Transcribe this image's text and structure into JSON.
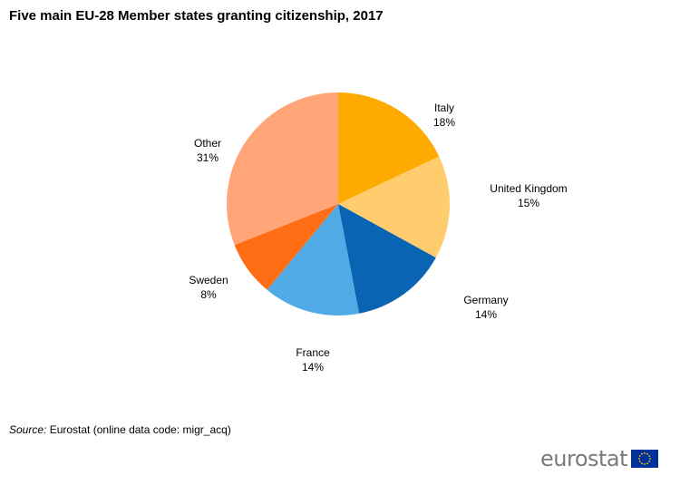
{
  "chart_data": {
    "type": "pie",
    "title": "Five main EU-28 Member states granting citizenship, 2017",
    "slices": [
      {
        "label": "Italy",
        "value": 18,
        "value_label": "18%",
        "color": "#ffaa00"
      },
      {
        "label": "United  Kingdom",
        "value": 15,
        "value_label": "15%",
        "color": "#ffcc6e"
      },
      {
        "label": "Germany",
        "value": 14,
        "value_label": "14%",
        "color": "#0a64b4"
      },
      {
        "label": "France",
        "value": 14,
        "value_label": "14%",
        "color": "#50aae6"
      },
      {
        "label": "Sweden",
        "value": 8,
        "value_label": "8%",
        "color": "#ff6e14"
      },
      {
        "label": "Other",
        "value": 31,
        "value_label": "31%",
        "color": "#ffa578"
      }
    ],
    "start": "12 o'clock",
    "direction": "clockwise",
    "legend": "none"
  },
  "footer": {
    "source_label": "Source:",
    "source_text": "Eurostat (online data code: migr_acq)",
    "brand": "eurostat"
  },
  "colors": {
    "eu_blue": "#003399",
    "eu_yellow": "#ffcc00",
    "brand_text": "#7a7a7a"
  }
}
